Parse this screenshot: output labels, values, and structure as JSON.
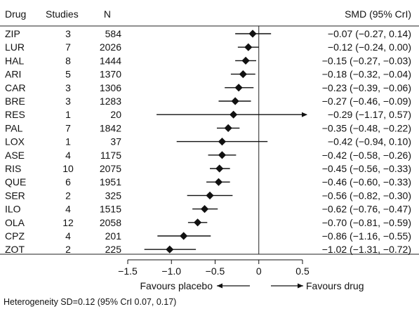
{
  "chart_data": {
    "type": "forest",
    "headers": {
      "drug": "Drug",
      "studies": "Studies",
      "n": "N",
      "effect": "SMD (95% CrI)"
    },
    "rows": [
      {
        "drug": "ZIP",
        "studies": "3",
        "n": "584",
        "smd": -0.07,
        "lo": -0.27,
        "hi": 0.14,
        "label": "−0.07 (−0.27, 0.14)"
      },
      {
        "drug": "LUR",
        "studies": "7",
        "n": "2026",
        "smd": -0.12,
        "lo": -0.24,
        "hi": 0.0,
        "label": "−0.12 (−0.24, 0.00)"
      },
      {
        "drug": "HAL",
        "studies": "8",
        "n": "1444",
        "smd": -0.15,
        "lo": -0.27,
        "hi": -0.03,
        "label": "−0.15 (−0.27, −0.03)"
      },
      {
        "drug": "ARI",
        "studies": "5",
        "n": "1370",
        "smd": -0.18,
        "lo": -0.32,
        "hi": -0.04,
        "label": "−0.18 (−0.32, −0.04)"
      },
      {
        "drug": "CAR",
        "studies": "3",
        "n": "1306",
        "smd": -0.23,
        "lo": -0.39,
        "hi": -0.06,
        "label": "−0.23 (−0.39, −0.06)"
      },
      {
        "drug": "BRE",
        "studies": "3",
        "n": "1283",
        "smd": -0.27,
        "lo": -0.46,
        "hi": -0.09,
        "label": "−0.27 (−0.46, −0.09)"
      },
      {
        "drug": "RES",
        "studies": "1",
        "n": "20",
        "smd": -0.29,
        "lo": -1.17,
        "hi": 0.57,
        "label": "−0.29 (−1.17, 0.57)"
      },
      {
        "drug": "PAL",
        "studies": "7",
        "n": "1842",
        "smd": -0.35,
        "lo": -0.48,
        "hi": -0.22,
        "label": "−0.35 (−0.48, −0.22)"
      },
      {
        "drug": "LOX",
        "studies": "1",
        "n": "37",
        "smd": -0.42,
        "lo": -0.94,
        "hi": 0.1,
        "label": "−0.42 (−0.94, 0.10)"
      },
      {
        "drug": "ASE",
        "studies": "4",
        "n": "1175",
        "smd": -0.42,
        "lo": -0.58,
        "hi": -0.26,
        "label": "−0.42 (−0.58, −0.26)"
      },
      {
        "drug": "RIS",
        "studies": "10",
        "n": "2075",
        "smd": -0.45,
        "lo": -0.56,
        "hi": -0.33,
        "label": "−0.45 (−0.56, −0.33)"
      },
      {
        "drug": "QUE",
        "studies": "6",
        "n": "1951",
        "smd": -0.46,
        "lo": -0.6,
        "hi": -0.33,
        "label": "−0.46 (−0.60, −0.33)"
      },
      {
        "drug": "SER",
        "studies": "2",
        "n": "325",
        "smd": -0.56,
        "lo": -0.82,
        "hi": -0.3,
        "label": "−0.56 (−0.82, −0.30)"
      },
      {
        "drug": "ILO",
        "studies": "4",
        "n": "1515",
        "smd": -0.62,
        "lo": -0.76,
        "hi": -0.47,
        "label": "−0.62 (−0.76, −0.47)"
      },
      {
        "drug": "OLA",
        "studies": "12",
        "n": "2058",
        "smd": -0.7,
        "lo": -0.81,
        "hi": -0.59,
        "label": "−0.70 (−0.81, −0.59)"
      },
      {
        "drug": "CPZ",
        "studies": "4",
        "n": "201",
        "smd": -0.86,
        "lo": -1.16,
        "hi": -0.55,
        "label": "−0.86 (−1.16, −0.55)"
      },
      {
        "drug": "ZOT",
        "studies": "2",
        "n": "225",
        "smd": -1.02,
        "lo": -1.31,
        "hi": -0.72,
        "label": "−1.02 (−1.31, −0.72)"
      }
    ],
    "xlim": [
      -1.5,
      0.5
    ],
    "ticks": [
      -1.5,
      -1.0,
      -0.5,
      0,
      0.5
    ],
    "tick_labels": [
      "−1.5",
      "−1.0",
      "−0.5",
      "0",
      "0.5"
    ],
    "reference_line": 0,
    "direction_left": "Favours placebo",
    "direction_right": "Favours drug",
    "footnote": "Heterogeneity SD=0.12 (95% CrI 0.07, 0.17)"
  }
}
